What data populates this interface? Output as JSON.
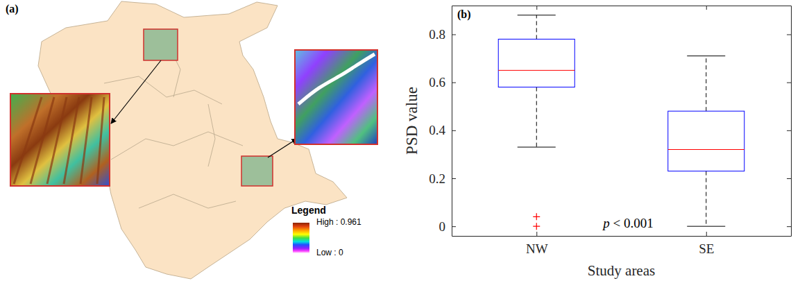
{
  "chart_data": [
    {
      "type": "map",
      "panel_label": "(a)",
      "legend_title": "Legend",
      "color_bar": {
        "range": [
          0,
          0.961
        ],
        "ticks": [
          {
            "value": 0.961,
            "label": "High : 0.961"
          },
          {
            "value": 0,
            "label": "Low : 0"
          }
        ]
      }
    },
    {
      "type": "box",
      "panel_label": "(b)",
      "x_label": "Study areas",
      "y_label": "PSD value",
      "categories": [
        "NW",
        "SE"
      ],
      "color": "#0000ff",
      "marker": "plus",
      "boxes": [
        {
          "whisker_low": 0.33,
          "q1": 0.58,
          "median": 0.65,
          "q3": 0.78,
          "whisker_high": 0.88,
          "outliers": [
            0.04,
            0.0
          ]
        },
        {
          "whisker_low": 0.0,
          "q1": 0.23,
          "median": 0.32,
          "q3": 0.48,
          "whisker_high": 0.71,
          "outliers": []
        }
      ],
      "ylim": [
        -0.04,
        0.92
      ],
      "yticks": [
        0,
        0.2,
        0.4,
        0.6,
        0.8
      ],
      "annotation": "p < 0.001"
    }
  ]
}
